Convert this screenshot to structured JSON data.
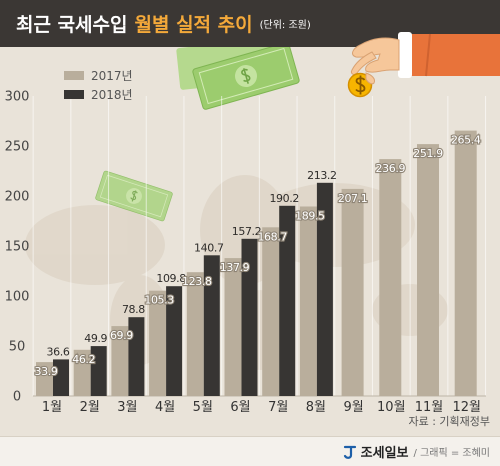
{
  "colors": {
    "header_bg": "#3b3734",
    "title_highlight": "#f4a93a",
    "series_2017": "#b9ae9c",
    "series_2018": "#373533",
    "background": "#e9e3d9",
    "logo": "#1d5fa8"
  },
  "chart_data": {
    "type": "bar",
    "title": {
      "main": "최근 국세수입",
      "highlight": "월별 실적 추이"
    },
    "unit": "(단위: 조원)",
    "categories": [
      "1월",
      "2월",
      "3월",
      "4월",
      "5월",
      "6월",
      "7월",
      "8월",
      "9월",
      "10월",
      "11월",
      "12월"
    ],
    "series": [
      {
        "name": "2017년",
        "values": [
          33.9,
          46.2,
          69.9,
          105.3,
          123.8,
          137.9,
          168.7,
          189.5,
          207.1,
          236.9,
          251.9,
          265.4
        ]
      },
      {
        "name": "2018년",
        "values": [
          36.6,
          49.9,
          78.8,
          109.8,
          140.7,
          157.2,
          190.2,
          213.2,
          null,
          null,
          null,
          null
        ]
      }
    ],
    "yticks": [
      0,
      50,
      100,
      150,
      200,
      250,
      300
    ],
    "ylim": [
      0,
      300
    ],
    "grid": true,
    "legend": "top-left"
  },
  "source": "자료 : 기획재정부",
  "footer": {
    "brand": "조세일보",
    "credit": "/ 그래픽 = 조혜미"
  },
  "icons": [
    "money-bill-icon",
    "hand-icon",
    "coin-icon",
    "logo-icon"
  ]
}
